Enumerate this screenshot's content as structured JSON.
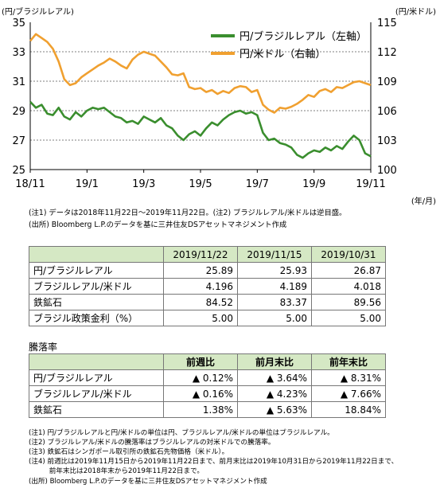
{
  "chart_data": {
    "type": "line",
    "left_axis_title": "(円/ブラジルレアル)",
    "right_axis_title": "(円/米ドル)",
    "x_unit": "(年/月)",
    "x_ticks": [
      "18/11",
      "19/1",
      "19/3",
      "19/5",
      "19/7",
      "19/9",
      "19/11"
    ],
    "left_ylim": [
      25,
      35
    ],
    "left_ticks": [
      "25",
      "27",
      "29",
      "31",
      "33",
      "35"
    ],
    "right_ylim": [
      100,
      115
    ],
    "right_ticks": [
      "100",
      "103",
      "106",
      "109",
      "112",
      "115"
    ],
    "grid": true,
    "legend_position": "top-right",
    "series": [
      {
        "name": "円/ブラジルレアル（左軸）",
        "axis": "left",
        "color": "#3a8e2e",
        "values": [
          29.6,
          29.2,
          29.4,
          28.8,
          28.7,
          29.2,
          28.6,
          28.4,
          28.9,
          28.6,
          29.0,
          29.2,
          29.1,
          29.2,
          28.9,
          28.6,
          28.5,
          28.2,
          28.3,
          28.1,
          28.6,
          28.4,
          28.2,
          28.5,
          28.0,
          27.8,
          27.3,
          27.0,
          27.4,
          27.6,
          27.3,
          27.8,
          28.2,
          28.0,
          28.4,
          28.7,
          28.9,
          29.0,
          28.8,
          28.9,
          28.7,
          27.5,
          27.0,
          27.1,
          26.8,
          26.7,
          26.5,
          26.0,
          25.8,
          26.1,
          26.3,
          26.2,
          26.5,
          26.3,
          26.6,
          26.4,
          26.9,
          27.3,
          27.0,
          26.1,
          25.9
        ]
      },
      {
        "name": "円/米ドル（右軸）",
        "axis": "right",
        "color": "#f0a030",
        "values": [
          113.1,
          113.8,
          113.4,
          113.0,
          112.3,
          111.0,
          109.2,
          108.6,
          108.8,
          109.4,
          109.8,
          110.2,
          110.6,
          110.9,
          111.3,
          111.0,
          110.6,
          110.3,
          111.2,
          111.7,
          112.0,
          111.8,
          111.6,
          111.0,
          110.4,
          109.7,
          109.6,
          109.8,
          108.4,
          108.2,
          108.3,
          107.9,
          108.1,
          107.7,
          108.0,
          107.8,
          108.3,
          108.5,
          108.4,
          107.9,
          108.1,
          106.6,
          106.1,
          105.8,
          106.3,
          106.2,
          106.4,
          106.7,
          107.1,
          107.6,
          107.4,
          108.0,
          108.2,
          107.9,
          108.4,
          108.3,
          108.6,
          108.9,
          109.0,
          108.8,
          108.6
        ]
      }
    ]
  },
  "chart_note": {
    "line1": "(注1) データは2018年11月22日～2019年11月22日。(注2) ブラジルレアル/米ドルは逆目盛。",
    "line2": "(出所) Bloomberg L.P.のデータを基に三井住友DSアセットマネジメント作成"
  },
  "table1": {
    "headers": [
      "",
      "2019/11/22",
      "2019/11/15",
      "2019/10/31"
    ],
    "rows": [
      {
        "label": "円/ブラジルレアル",
        "values": [
          "25.89",
          "25.93",
          "26.87"
        ]
      },
      {
        "label": "ブラジルレアル/米ドル",
        "values": [
          "4.196",
          "4.189",
          "4.018"
        ]
      },
      {
        "label": "鉄鉱石",
        "values": [
          "84.52",
          "83.37",
          "89.56"
        ]
      },
      {
        "label": "ブラジル政策金利（%）",
        "values": [
          "5.00",
          "5.00",
          "5.00"
        ]
      }
    ]
  },
  "table2": {
    "title": "騰落率",
    "headers": [
      "",
      "前週比",
      "前月末比",
      "前年末比"
    ],
    "rows": [
      {
        "label": "円/ブラジルレアル",
        "values": [
          "▲ 0.12%",
          "▲ 3.64%",
          "▲ 8.31%"
        ]
      },
      {
        "label": "ブラジルレアル/米ドル",
        "values": [
          "▲ 0.16%",
          "▲ 4.23%",
          "▲ 7.66%"
        ]
      },
      {
        "label": "鉄鉱石",
        "values": [
          "1.38%",
          "▲ 5.63%",
          "18.84%"
        ]
      }
    ]
  },
  "footnotes": [
    "(注1) 円/ブラジルレアルと円/米ドルの単位は円、ブラジルレアル/米ドルの単位はブラジルレアル。",
    "(注2) ブラジルレアル/米ドルの騰落率はブラジルレアルの対米ドルでの騰落率。",
    "(注3) 鉄鉱石はシンガポール取引所の鉄鉱石先物価格（米ドル）。",
    "(注4) 前週比は2019年11月15日から2019年11月22日まで、前月末比は2019年10月31日から2019年11月22日まで、",
    "　　　前年末比は2018年末から2019年11月22日まで。",
    "(出所) Bloomberg L.P.のデータを基に三井住友DSアセットマネジメント作成"
  ]
}
